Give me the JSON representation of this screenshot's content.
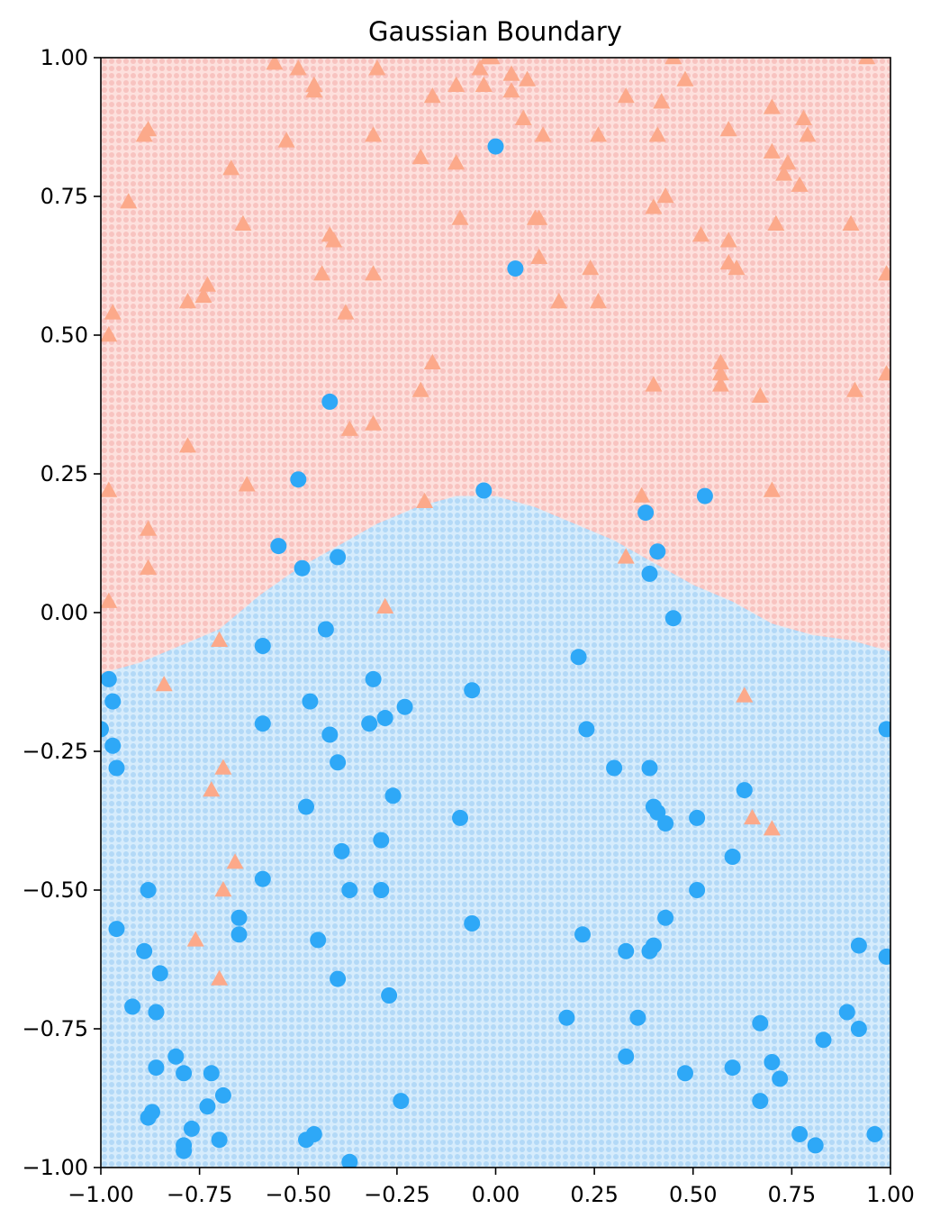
{
  "chart_data": {
    "type": "scatter",
    "title": "Gaussian Boundary",
    "xlabel": "",
    "ylabel": "",
    "xlim": [
      -1.0,
      1.0
    ],
    "ylim": [
      -1.0,
      1.0
    ],
    "x_ticks": [
      -1.0,
      -0.75,
      -0.5,
      -0.25,
      0.0,
      0.25,
      0.5,
      0.75,
      1.0
    ],
    "x_tick_labels": [
      "−1.00",
      "−0.75",
      "−0.50",
      "−0.25",
      "0.00",
      "0.25",
      "0.50",
      "0.75",
      "1.00"
    ],
    "y_ticks": [
      -1.0,
      -0.75,
      -0.5,
      -0.25,
      0.0,
      0.25,
      0.5,
      0.75,
      1.0
    ],
    "y_tick_labels": [
      "−1.00",
      "−0.75",
      "−0.50",
      "−0.25",
      "0.00",
      "0.25",
      "0.50",
      "0.75",
      "1.00"
    ],
    "background_regions": {
      "upper_class_color": "#fde0dd",
      "upper_dot_color": "#f8c3c0",
      "lower_class_color": "#d6ecfc",
      "lower_dot_color": "#b3d9f7",
      "boundary_curve": {
        "description": "Approximate boundary: lower (blue) region below the curve",
        "x": [
          -1.0,
          -0.9,
          -0.8,
          -0.7,
          -0.6,
          -0.5,
          -0.4,
          -0.3,
          -0.2,
          -0.1,
          0.0,
          0.1,
          0.2,
          0.3,
          0.4,
          0.5,
          0.6,
          0.7,
          0.8,
          0.9,
          1.0
        ],
        "y": [
          -0.11,
          -0.09,
          -0.06,
          -0.03,
          0.03,
          0.08,
          0.12,
          0.16,
          0.19,
          0.21,
          0.21,
          0.19,
          0.16,
          0.13,
          0.09,
          0.05,
          0.02,
          -0.02,
          -0.04,
          -0.05,
          -0.07
        ]
      }
    },
    "series": [
      {
        "name": "class-triangle",
        "marker": "triangle",
        "color": "#fca98a",
        "points": [
          [
            -0.56,
            0.99
          ],
          [
            -0.5,
            0.98
          ],
          [
            -0.46,
            0.95
          ],
          [
            -0.46,
            0.94
          ],
          [
            -0.3,
            0.98
          ],
          [
            -0.16,
            0.93
          ],
          [
            -0.1,
            0.95
          ],
          [
            -0.04,
            0.98
          ],
          [
            -0.02,
            1.0
          ],
          [
            -0.01,
            1.0
          ],
          [
            -0.03,
            0.95
          ],
          [
            0.04,
            0.97
          ],
          [
            0.04,
            0.94
          ],
          [
            0.08,
            0.96
          ],
          [
            0.33,
            0.93
          ],
          [
            0.45,
            1.0
          ],
          [
            0.48,
            0.96
          ],
          [
            0.94,
            1.0
          ],
          [
            -0.88,
            0.87
          ],
          [
            -0.89,
            0.86
          ],
          [
            -0.53,
            0.85
          ],
          [
            -0.31,
            0.86
          ],
          [
            -0.19,
            0.82
          ],
          [
            -0.1,
            0.81
          ],
          [
            0.07,
            0.89
          ],
          [
            0.12,
            0.86
          ],
          [
            0.26,
            0.86
          ],
          [
            0.41,
            0.86
          ],
          [
            0.42,
            0.92
          ],
          [
            0.59,
            0.87
          ],
          [
            0.7,
            0.91
          ],
          [
            0.78,
            0.89
          ],
          [
            0.79,
            0.86
          ],
          [
            0.7,
            0.83
          ],
          [
            0.74,
            0.81
          ],
          [
            0.73,
            0.79
          ],
          [
            0.77,
            0.77
          ],
          [
            -0.67,
            0.8
          ],
          [
            -0.93,
            0.74
          ],
          [
            -0.64,
            0.7
          ],
          [
            -0.09,
            0.71
          ],
          [
            0.1,
            0.71
          ],
          [
            0.11,
            0.71
          ],
          [
            0.4,
            0.73
          ],
          [
            0.43,
            0.75
          ],
          [
            0.71,
            0.7
          ],
          [
            0.9,
            0.7
          ],
          [
            -0.42,
            0.68
          ],
          [
            -0.41,
            0.67
          ],
          [
            0.52,
            0.68
          ],
          [
            0.59,
            0.67
          ],
          [
            -0.44,
            0.61
          ],
          [
            -0.31,
            0.61
          ],
          [
            0.11,
            0.64
          ],
          [
            0.24,
            0.62
          ],
          [
            0.59,
            0.63
          ],
          [
            0.61,
            0.62
          ],
          [
            0.99,
            0.61
          ],
          [
            -0.73,
            0.59
          ],
          [
            -0.74,
            0.57
          ],
          [
            -0.78,
            0.56
          ],
          [
            -0.97,
            0.54
          ],
          [
            -0.98,
            0.5
          ],
          [
            -0.38,
            0.54
          ],
          [
            0.16,
            0.56
          ],
          [
            0.26,
            0.56
          ],
          [
            -0.16,
            0.45
          ],
          [
            -0.19,
            0.4
          ],
          [
            0.57,
            0.45
          ],
          [
            0.57,
            0.43
          ],
          [
            0.57,
            0.41
          ],
          [
            0.4,
            0.41
          ],
          [
            0.67,
            0.39
          ],
          [
            0.91,
            0.4
          ],
          [
            0.99,
            0.43
          ],
          [
            -0.31,
            0.34
          ],
          [
            -0.37,
            0.33
          ],
          [
            -0.78,
            0.3
          ],
          [
            -0.63,
            0.23
          ],
          [
            -0.98,
            0.22
          ],
          [
            -0.18,
            0.2
          ],
          [
            0.37,
            0.21
          ],
          [
            0.7,
            0.22
          ],
          [
            -0.88,
            0.15
          ],
          [
            -0.88,
            0.08
          ],
          [
            0.33,
            0.1
          ],
          [
            -0.98,
            0.02
          ],
          [
            -0.28,
            0.01
          ],
          [
            -0.7,
            -0.05
          ],
          [
            -0.84,
            -0.13
          ],
          [
            0.63,
            -0.15
          ],
          [
            -0.69,
            -0.28
          ],
          [
            -0.72,
            -0.32
          ],
          [
            0.65,
            -0.37
          ],
          [
            0.7,
            -0.39
          ],
          [
            -0.66,
            -0.45
          ],
          [
            -0.69,
            -0.5
          ],
          [
            -0.76,
            -0.59
          ],
          [
            -0.7,
            -0.66
          ]
        ]
      },
      {
        "name": "class-circle",
        "marker": "circle",
        "color": "#2ea8f7",
        "points": [
          [
            0.0,
            0.84
          ],
          [
            0.05,
            0.62
          ],
          [
            -0.42,
            0.38
          ],
          [
            -0.5,
            0.24
          ],
          [
            -0.03,
            0.22
          ],
          [
            0.53,
            0.21
          ],
          [
            0.38,
            0.18
          ],
          [
            0.41,
            0.11
          ],
          [
            0.39,
            0.07
          ],
          [
            -0.55,
            0.12
          ],
          [
            -0.49,
            0.08
          ],
          [
            -0.4,
            0.1
          ],
          [
            -0.43,
            -0.03
          ],
          [
            0.45,
            -0.01
          ],
          [
            -0.59,
            -0.06
          ],
          [
            0.21,
            -0.08
          ],
          [
            -0.98,
            -0.12
          ],
          [
            -0.31,
            -0.12
          ],
          [
            -0.97,
            -0.16
          ],
          [
            -0.47,
            -0.16
          ],
          [
            -0.06,
            -0.14
          ],
          [
            -0.23,
            -0.17
          ],
          [
            -0.28,
            -0.19
          ],
          [
            -0.32,
            -0.2
          ],
          [
            -0.59,
            -0.2
          ],
          [
            -1.0,
            -0.21
          ],
          [
            0.23,
            -0.21
          ],
          [
            0.99,
            -0.21
          ],
          [
            -0.97,
            -0.24
          ],
          [
            -0.42,
            -0.22
          ],
          [
            -0.96,
            -0.28
          ],
          [
            -0.4,
            -0.27
          ],
          [
            0.3,
            -0.28
          ],
          [
            0.39,
            -0.28
          ],
          [
            -0.48,
            -0.35
          ],
          [
            -0.26,
            -0.33
          ],
          [
            0.63,
            -0.32
          ],
          [
            0.4,
            -0.35
          ],
          [
            0.41,
            -0.36
          ],
          [
            -0.09,
            -0.37
          ],
          [
            0.43,
            -0.38
          ],
          [
            0.51,
            -0.37
          ],
          [
            -0.29,
            -0.41
          ],
          [
            -0.39,
            -0.43
          ],
          [
            0.6,
            -0.44
          ],
          [
            -0.88,
            -0.5
          ],
          [
            -0.59,
            -0.48
          ],
          [
            -0.37,
            -0.5
          ],
          [
            -0.29,
            -0.5
          ],
          [
            0.51,
            -0.5
          ],
          [
            -0.65,
            -0.55
          ],
          [
            -0.96,
            -0.57
          ],
          [
            -0.65,
            -0.58
          ],
          [
            -0.06,
            -0.56
          ],
          [
            0.22,
            -0.58
          ],
          [
            0.43,
            -0.55
          ],
          [
            -0.89,
            -0.61
          ],
          [
            -0.45,
            -0.59
          ],
          [
            0.33,
            -0.61
          ],
          [
            0.39,
            -0.61
          ],
          [
            0.4,
            -0.6
          ],
          [
            0.92,
            -0.6
          ],
          [
            0.99,
            -0.62
          ],
          [
            -0.85,
            -0.65
          ],
          [
            -0.4,
            -0.66
          ],
          [
            -0.92,
            -0.71
          ],
          [
            -0.86,
            -0.72
          ],
          [
            -0.27,
            -0.69
          ],
          [
            0.18,
            -0.73
          ],
          [
            0.36,
            -0.73
          ],
          [
            0.67,
            -0.74
          ],
          [
            0.89,
            -0.72
          ],
          [
            0.92,
            -0.75
          ],
          [
            -0.81,
            -0.8
          ],
          [
            -0.86,
            -0.82
          ],
          [
            -0.79,
            -0.83
          ],
          [
            -0.72,
            -0.83
          ],
          [
            0.33,
            -0.8
          ],
          [
            0.48,
            -0.83
          ],
          [
            0.6,
            -0.82
          ],
          [
            0.7,
            -0.81
          ],
          [
            0.72,
            -0.84
          ],
          [
            0.83,
            -0.77
          ],
          [
            -0.69,
            -0.87
          ],
          [
            -0.73,
            -0.89
          ],
          [
            -0.24,
            -0.88
          ],
          [
            0.67,
            -0.88
          ],
          [
            -0.87,
            -0.9
          ],
          [
            -0.88,
            -0.91
          ],
          [
            -0.77,
            -0.93
          ],
          [
            -0.46,
            -0.94
          ],
          [
            -0.48,
            -0.95
          ],
          [
            -0.7,
            -0.95
          ],
          [
            -0.79,
            -0.96
          ],
          [
            -0.79,
            -0.97
          ],
          [
            0.77,
            -0.94
          ],
          [
            0.81,
            -0.96
          ],
          [
            0.96,
            -0.94
          ],
          [
            -0.37,
            -0.99
          ]
        ]
      }
    ]
  }
}
